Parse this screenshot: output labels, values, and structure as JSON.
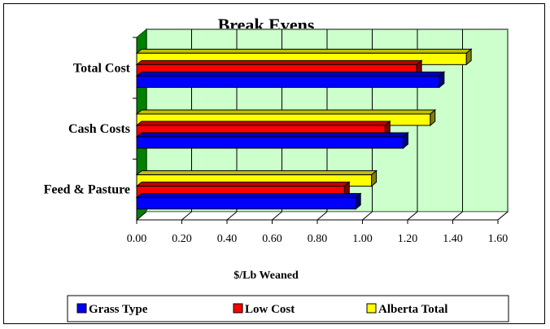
{
  "chart_data": {
    "type": "bar",
    "orientation": "horizontal",
    "title": "Break Evens",
    "xlabel": "$/Lb Weaned",
    "ylabel": "",
    "categories": [
      "Feed & Pasture",
      "Cash Costs",
      "Total Cost"
    ],
    "series": [
      {
        "name": "Grass Type",
        "color": "#0000ff",
        "values": [
          0.97,
          1.18,
          1.34
        ]
      },
      {
        "name": "Low Cost",
        "color": "#ff0000",
        "values": [
          0.92,
          1.1,
          1.24
        ]
      },
      {
        "name": "Alberta Total",
        "color": "#ffff00",
        "values": [
          1.04,
          1.3,
          1.46
        ]
      }
    ],
    "xlim": [
      0,
      1.6
    ],
    "ticks": [
      "0.00",
      "0.20",
      "0.40",
      "0.60",
      "0.80",
      "1.00",
      "1.20",
      "1.40",
      "1.60"
    ],
    "grid": true,
    "legend": "bottom",
    "plot_background": "#ccffcc",
    "floor_color": "#008000"
  }
}
